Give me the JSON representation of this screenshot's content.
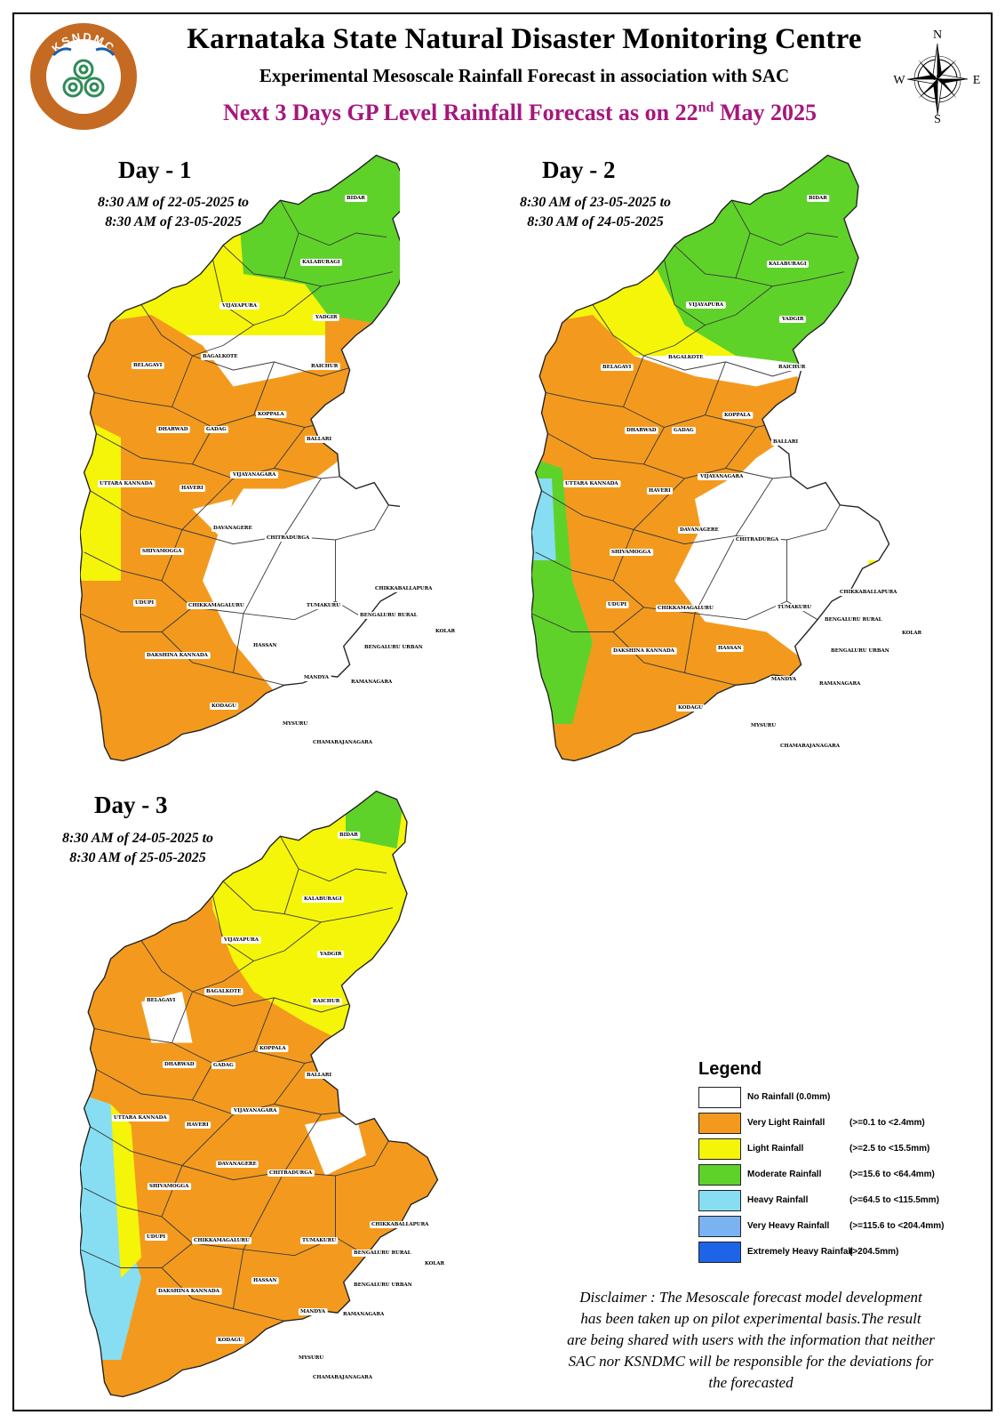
{
  "header": {
    "org_title": "Karnataka State Natural Disaster Monitoring Centre",
    "subtitle": "Experimental Mesoscale Rainfall Forecast in association with SAC",
    "forecast_prefix": "Next 3 Days GP Level Rainfall Forecast  as on 22",
    "forecast_sup": "nd",
    "forecast_suffix": " May 2025",
    "logo_text": "KSNDMC",
    "logo_icon": "triskele-spiral-icon"
  },
  "compass": {
    "north": "N",
    "south": "S",
    "east": "E",
    "west": "W",
    "icon": "compass-rose-icon"
  },
  "days": [
    {
      "title": "Day - 1",
      "period_line1": "8:30 AM of 22-05-2025 to",
      "period_line2": "8:30 AM of 23-05-2025"
    },
    {
      "title": "Day - 2",
      "period_line1": "8:30 AM of 23-05-2025 to",
      "period_line2": "8:30 AM of 24-05-2025"
    },
    {
      "title": "Day - 3",
      "period_line1": "8:30 AM of 24-05-2025 to",
      "period_line2": "8:30 AM of 25-05-2025"
    }
  ],
  "districts": {
    "bidar": "BIDAR",
    "kalaburagi": "KALABURAGI",
    "vijayapura": "VIJAYAPURA",
    "yadgir": "YADGIR",
    "belagavi": "BELAGAVI",
    "bagalkote": "BAGALKOTE",
    "raichur": "RAICHUR",
    "koppala": "KOPPALA",
    "dharwad": "DHARWAD",
    "gadag": "GADAG",
    "ballari": "BALLARI",
    "uttara_kannada": "UTTARA KANNADA",
    "haveri": "HAVERI",
    "vijayanagara": "VIJAYANAGARA",
    "davanagere": "DAVANAGERE",
    "chitradurga": "CHITRADURGA",
    "shivamogga": "SHIVAMOGGA",
    "chikkaballapura": "CHIKKABALLAPURA",
    "udupi": "UDUPI",
    "chikkamagaluru": "CHIKKAMAGALURU",
    "tumakuru": "TUMAKURU",
    "bengaluru_rural": "BENGALURU RURAL",
    "kolar": "KOLAR",
    "hassan": "HASSAN",
    "bengaluru_urban": "BENGALURU URBAN",
    "dakshina_kannada": "DAKSHINA KANNADA",
    "mandya": "MANDYA",
    "ramanagara": "RAMANAGARA",
    "kodagu": "KODAGU",
    "mysuru": "MYSURU",
    "chamarajanagara": "CHAMARAJANAGARA"
  },
  "legend": {
    "title": "Legend",
    "items": [
      {
        "label": "No Rainfall (0.0mm)",
        "range": "",
        "color": "#ffffff"
      },
      {
        "label": "Very Light Rainfall",
        "range": "(>=0.1 to <2.4mm)",
        "color": "#f39a1e"
      },
      {
        "label": "Light Rainfall",
        "range": "(>=2.5 to <15.5mm)",
        "color": "#f5f50a"
      },
      {
        "label": "Moderate Rainfall",
        "range": "(>=15.6 to <64.4mm)",
        "color": "#5fd22a"
      },
      {
        "label": "Heavy Rainfall",
        "range": "(>=64.5 to <115.5mm)",
        "color": "#87def2"
      },
      {
        "label": "Very Heavy Rainfall",
        "range": "(>=115.6 to <204.4mm)",
        "color": "#7ab2f2"
      },
      {
        "label": "Extremely Heavy Rainfall",
        "range": "(>204.5mm)",
        "color": "#1e64e6"
      }
    ]
  },
  "disclaimer": {
    "line1": "Disclaimer : The Mesoscale forecast model development",
    "line2": "has been taken up on pilot experimental basis.The result",
    "line3": "are being shared with users with the information that neither",
    "line4": "SAC nor KSNDMC will be responsible  for the deviations for",
    "line5": "the forecasted"
  }
}
